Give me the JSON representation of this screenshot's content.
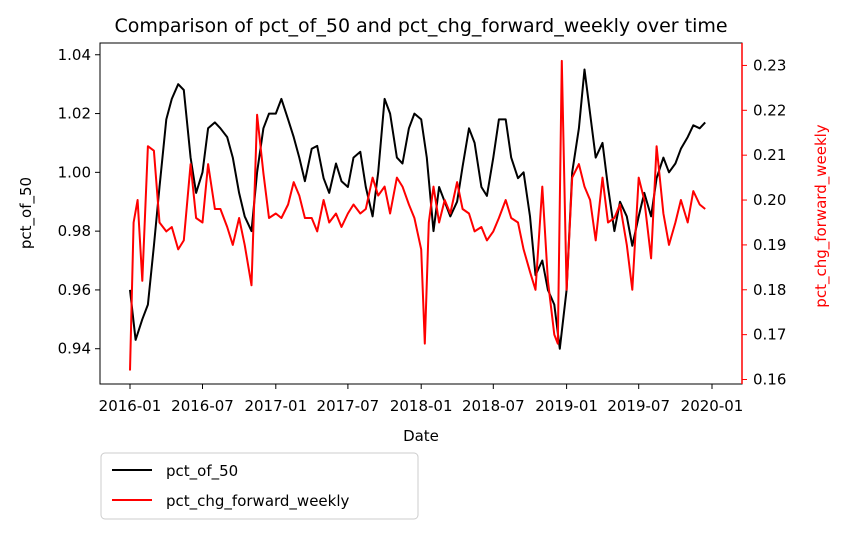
{
  "chart_data": {
    "type": "line",
    "title": "Comparison of pct_of_50 and pct_chg_forward_weekly over time",
    "xlabel": "Date",
    "ylabel": "pct_of_50",
    "y2label": "pct_chg_forward_weekly",
    "x_ticks": [
      "2016-01",
      "2016-07",
      "2017-01",
      "2017-07",
      "2018-01",
      "2018-07",
      "2019-01",
      "2019-07",
      "2020-01"
    ],
    "y_ticks": [
      "0.94",
      "0.96",
      "0.98",
      "1.00",
      "1.02",
      "1.04"
    ],
    "y2_ticks": [
      "0.16",
      "0.17",
      "0.18",
      "0.19",
      "0.20",
      "0.21",
      "0.22",
      "0.23"
    ],
    "xlim": [
      "2016-01-01",
      "2020-01-01"
    ],
    "ylim": [
      0.928,
      1.044
    ],
    "y2lim": [
      0.159,
      0.235
    ],
    "legend_position": "below-left",
    "series": [
      {
        "name": "pct_of_50",
        "color": "#000000",
        "axis": "left",
        "points": [
          [
            "2016-01-01",
            0.96
          ],
          [
            "2016-01-15",
            0.943
          ],
          [
            "2016-02-01",
            0.95
          ],
          [
            "2016-02-15",
            0.955
          ],
          [
            "2016-03-01",
            0.975
          ],
          [
            "2016-03-15",
            0.995
          ],
          [
            "2016-04-01",
            1.018
          ],
          [
            "2016-04-15",
            1.025
          ],
          [
            "2016-05-01",
            1.03
          ],
          [
            "2016-05-15",
            1.028
          ],
          [
            "2016-06-01",
            1.005
          ],
          [
            "2016-06-15",
            0.993
          ],
          [
            "2016-07-01",
            1.0
          ],
          [
            "2016-07-15",
            1.015
          ],
          [
            "2016-08-01",
            1.017
          ],
          [
            "2016-08-15",
            1.015
          ],
          [
            "2016-09-01",
            1.012
          ],
          [
            "2016-09-15",
            1.005
          ],
          [
            "2016-10-01",
            0.993
          ],
          [
            "2016-10-15",
            0.985
          ],
          [
            "2016-11-01",
            0.98
          ],
          [
            "2016-11-15",
            1.0
          ],
          [
            "2016-12-01",
            1.015
          ],
          [
            "2016-12-15",
            1.02
          ],
          [
            "2017-01-01",
            1.02
          ],
          [
            "2017-01-15",
            1.025
          ],
          [
            "2017-02-01",
            1.018
          ],
          [
            "2017-02-15",
            1.012
          ],
          [
            "2017-03-01",
            1.005
          ],
          [
            "2017-03-15",
            0.997
          ],
          [
            "2017-04-01",
            1.008
          ],
          [
            "2017-04-15",
            1.009
          ],
          [
            "2017-05-01",
            0.998
          ],
          [
            "2017-05-15",
            0.993
          ],
          [
            "2017-06-01",
            1.003
          ],
          [
            "2017-06-15",
            0.997
          ],
          [
            "2017-07-01",
            0.995
          ],
          [
            "2017-07-15",
            1.005
          ],
          [
            "2017-08-01",
            1.007
          ],
          [
            "2017-08-15",
            0.995
          ],
          [
            "2017-09-01",
            0.985
          ],
          [
            "2017-09-15",
            1.0
          ],
          [
            "2017-10-01",
            1.025
          ],
          [
            "2017-10-15",
            1.02
          ],
          [
            "2017-11-01",
            1.005
          ],
          [
            "2017-11-15",
            1.003
          ],
          [
            "2017-12-01",
            1.015
          ],
          [
            "2017-12-15",
            1.02
          ],
          [
            "2018-01-01",
            1.018
          ],
          [
            "2018-01-15",
            1.005
          ],
          [
            "2018-02-01",
            0.98
          ],
          [
            "2018-02-15",
            0.995
          ],
          [
            "2018-03-01",
            0.99
          ],
          [
            "2018-03-15",
            0.985
          ],
          [
            "2018-04-01",
            0.99
          ],
          [
            "2018-04-15",
            1.002
          ],
          [
            "2018-05-01",
            1.015
          ],
          [
            "2018-05-15",
            1.01
          ],
          [
            "2018-06-01",
            0.995
          ],
          [
            "2018-06-15",
            0.992
          ],
          [
            "2018-07-01",
            1.005
          ],
          [
            "2018-07-15",
            1.018
          ],
          [
            "2018-08-01",
            1.018
          ],
          [
            "2018-08-15",
            1.005
          ],
          [
            "2018-09-01",
            0.998
          ],
          [
            "2018-09-15",
            1.0
          ],
          [
            "2018-10-01",
            0.985
          ],
          [
            "2018-10-15",
            0.965
          ],
          [
            "2018-11-01",
            0.97
          ],
          [
            "2018-11-15",
            0.96
          ],
          [
            "2018-12-01",
            0.955
          ],
          [
            "2018-12-15",
            0.94
          ],
          [
            "2019-01-01",
            0.96
          ],
          [
            "2019-01-15",
            1.0
          ],
          [
            "2019-02-01",
            1.015
          ],
          [
            "2019-02-15",
            1.035
          ],
          [
            "2019-03-01",
            1.02
          ],
          [
            "2019-03-15",
            1.005
          ],
          [
            "2019-04-01",
            1.01
          ],
          [
            "2019-04-15",
            0.995
          ],
          [
            "2019-05-01",
            0.98
          ],
          [
            "2019-05-15",
            0.99
          ],
          [
            "2019-06-01",
            0.985
          ],
          [
            "2019-06-15",
            0.975
          ],
          [
            "2019-07-01",
            0.985
          ],
          [
            "2019-07-15",
            0.993
          ],
          [
            "2019-08-01",
            0.985
          ],
          [
            "2019-08-15",
            0.998
          ],
          [
            "2019-09-01",
            1.005
          ],
          [
            "2019-09-15",
            1.0
          ],
          [
            "2019-10-01",
            1.003
          ],
          [
            "2019-10-15",
            1.008
          ],
          [
            "2019-11-01",
            1.012
          ],
          [
            "2019-11-15",
            1.016
          ],
          [
            "2019-12-01",
            1.015
          ],
          [
            "2019-12-15",
            1.017
          ]
        ]
      },
      {
        "name": "pct_chg_forward_weekly",
        "color": "#ff0000",
        "axis": "right",
        "points": [
          [
            "2016-01-01",
            0.162
          ],
          [
            "2016-01-10",
            0.195
          ],
          [
            "2016-01-20",
            0.2
          ],
          [
            "2016-02-01",
            0.182
          ],
          [
            "2016-02-15",
            0.212
          ],
          [
            "2016-03-01",
            0.211
          ],
          [
            "2016-03-15",
            0.195
          ],
          [
            "2016-04-01",
            0.193
          ],
          [
            "2016-04-15",
            0.194
          ],
          [
            "2016-05-01",
            0.189
          ],
          [
            "2016-05-15",
            0.191
          ],
          [
            "2016-06-01",
            0.208
          ],
          [
            "2016-06-15",
            0.196
          ],
          [
            "2016-07-01",
            0.195
          ],
          [
            "2016-07-15",
            0.208
          ],
          [
            "2016-08-01",
            0.198
          ],
          [
            "2016-08-15",
            0.198
          ],
          [
            "2016-09-01",
            0.194
          ],
          [
            "2016-09-15",
            0.19
          ],
          [
            "2016-10-01",
            0.196
          ],
          [
            "2016-10-15",
            0.19
          ],
          [
            "2016-11-01",
            0.181
          ],
          [
            "2016-11-15",
            0.219
          ],
          [
            "2016-12-01",
            0.206
          ],
          [
            "2016-12-15",
            0.196
          ],
          [
            "2017-01-01",
            0.197
          ],
          [
            "2017-01-15",
            0.196
          ],
          [
            "2017-02-01",
            0.199
          ],
          [
            "2017-02-15",
            0.204
          ],
          [
            "2017-03-01",
            0.201
          ],
          [
            "2017-03-15",
            0.196
          ],
          [
            "2017-04-01",
            0.196
          ],
          [
            "2017-04-15",
            0.193
          ],
          [
            "2017-05-01",
            0.2
          ],
          [
            "2017-05-15",
            0.195
          ],
          [
            "2017-06-01",
            0.197
          ],
          [
            "2017-06-15",
            0.194
          ],
          [
            "2017-07-01",
            0.197
          ],
          [
            "2017-07-15",
            0.199
          ],
          [
            "2017-08-01",
            0.197
          ],
          [
            "2017-08-15",
            0.198
          ],
          [
            "2017-09-01",
            0.205
          ],
          [
            "2017-09-15",
            0.201
          ],
          [
            "2017-10-01",
            0.203
          ],
          [
            "2017-10-15",
            0.197
          ],
          [
            "2017-11-01",
            0.205
          ],
          [
            "2017-11-15",
            0.203
          ],
          [
            "2017-12-01",
            0.199
          ],
          [
            "2017-12-15",
            0.196
          ],
          [
            "2018-01-01",
            0.189
          ],
          [
            "2018-01-10",
            0.168
          ],
          [
            "2018-01-20",
            0.195
          ],
          [
            "2018-02-01",
            0.203
          ],
          [
            "2018-02-15",
            0.195
          ],
          [
            "2018-03-01",
            0.2
          ],
          [
            "2018-03-15",
            0.197
          ],
          [
            "2018-04-01",
            0.204
          ],
          [
            "2018-04-15",
            0.198
          ],
          [
            "2018-05-01",
            0.197
          ],
          [
            "2018-05-15",
            0.193
          ],
          [
            "2018-06-01",
            0.194
          ],
          [
            "2018-06-15",
            0.191
          ],
          [
            "2018-07-01",
            0.193
          ],
          [
            "2018-07-15",
            0.196
          ],
          [
            "2018-08-01",
            0.2
          ],
          [
            "2018-08-15",
            0.196
          ],
          [
            "2018-09-01",
            0.195
          ],
          [
            "2018-09-15",
            0.189
          ],
          [
            "2018-10-01",
            0.184
          ],
          [
            "2018-10-15",
            0.18
          ],
          [
            "2018-11-01",
            0.203
          ],
          [
            "2018-11-15",
            0.182
          ],
          [
            "2018-12-01",
            0.17
          ],
          [
            "2018-12-10",
            0.168
          ],
          [
            "2018-12-20",
            0.231
          ],
          [
            "2019-01-01",
            0.18
          ],
          [
            "2019-01-15",
            0.205
          ],
          [
            "2019-02-01",
            0.208
          ],
          [
            "2019-02-15",
            0.203
          ],
          [
            "2019-03-01",
            0.2
          ],
          [
            "2019-03-15",
            0.191
          ],
          [
            "2019-04-01",
            0.205
          ],
          [
            "2019-04-15",
            0.195
          ],
          [
            "2019-05-01",
            0.196
          ],
          [
            "2019-05-15",
            0.199
          ],
          [
            "2019-06-01",
            0.19
          ],
          [
            "2019-06-15",
            0.18
          ],
          [
            "2019-07-01",
            0.205
          ],
          [
            "2019-07-15",
            0.2
          ],
          [
            "2019-08-01",
            0.187
          ],
          [
            "2019-08-15",
            0.212
          ],
          [
            "2019-09-01",
            0.197
          ],
          [
            "2019-09-15",
            0.19
          ],
          [
            "2019-10-01",
            0.195
          ],
          [
            "2019-10-15",
            0.2
          ],
          [
            "2019-11-01",
            0.195
          ],
          [
            "2019-11-15",
            0.202
          ],
          [
            "2019-12-01",
            0.199
          ],
          [
            "2019-12-15",
            0.198
          ]
        ]
      }
    ]
  }
}
